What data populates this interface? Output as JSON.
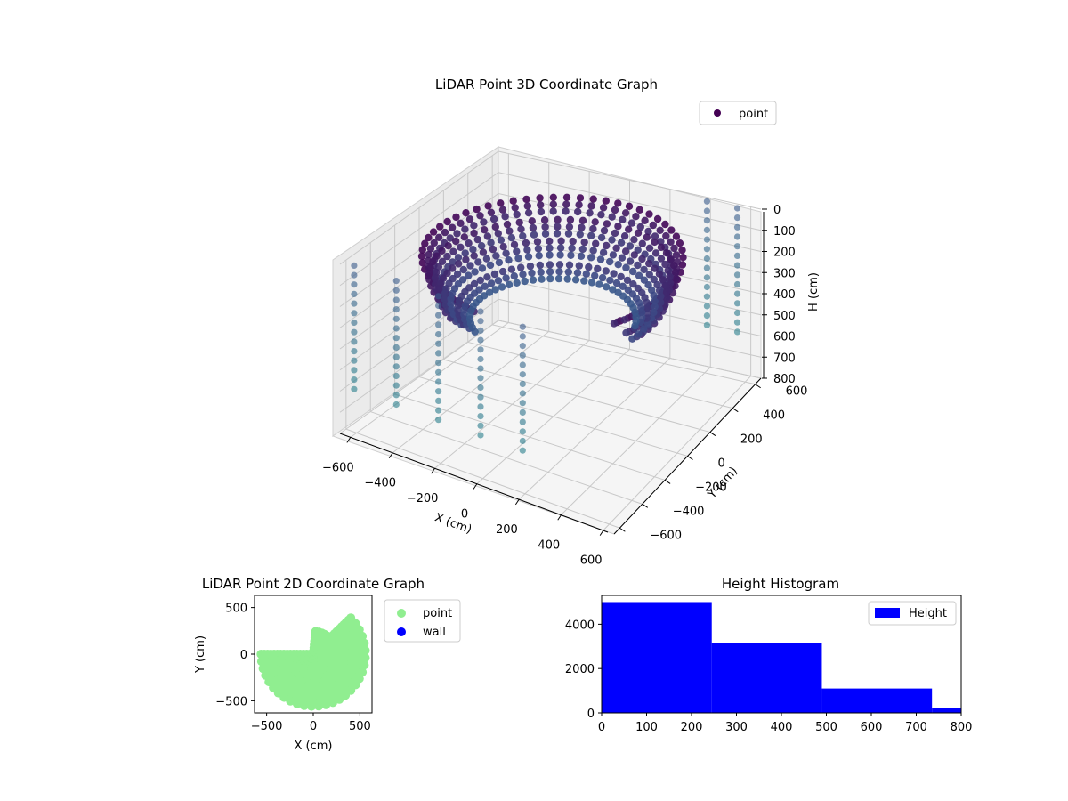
{
  "figure": {
    "charts": "see chart_data"
  },
  "chart_data": [
    {
      "type": "scatter",
      "projection": "3d",
      "title": "LiDAR Point 3D Coordinate Graph",
      "xlabel": "X (cm)",
      "ylabel": "Y (cm)",
      "zlabel": "H (cm)",
      "x_ticks": [
        "−600",
        "−400",
        "−200",
        "0",
        "200",
        "400",
        "600"
      ],
      "y_ticks": [
        "−600",
        "−400",
        "−200",
        "0",
        "200",
        "400",
        "600"
      ],
      "z_ticks": [
        "0",
        "100",
        "200",
        "300",
        "400",
        "500",
        "600",
        "700",
        "800"
      ],
      "xlim": [
        -650,
        650
      ],
      "ylim": [
        -650,
        650
      ],
      "zlim": [
        800,
        0
      ],
      "z_axis_inverted": true,
      "colormap": "viridis (color by height)",
      "legend": {
        "position": "top-right",
        "entries": [
          {
            "label": "point",
            "color": "#440154"
          }
        ]
      },
      "grid": true,
      "description_of_points": "Several curved rings of points at radius ~350-600 cm near the floor plus vertical columns of points along the walls",
      "series": [
        {
          "name": "point",
          "rings": [
            {
              "radius": 550,
              "height": 60,
              "angle_start": -30,
              "angle_end": 260
            },
            {
              "radius": 520,
              "height": 150,
              "angle_start": -20,
              "angle_end": 250
            },
            {
              "radius": 480,
              "height": 230,
              "angle_start": -10,
              "angle_end": 240
            },
            {
              "radius": 400,
              "height": 300,
              "angle_start": 20,
              "angle_end": 230
            }
          ],
          "wall_columns": [
            {
              "x": -600,
              "y": -620,
              "h_min": 0,
              "h_max": 600
            },
            {
              "x": -400,
              "y": -620,
              "h_min": 0,
              "h_max": 600
            },
            {
              "x": -200,
              "y": -620,
              "h_min": 0,
              "h_max": 600
            },
            {
              "x": 0,
              "y": -620,
              "h_min": 0,
              "h_max": 600
            },
            {
              "x": 200,
              "y": -620,
              "h_min": 0,
              "h_max": 600
            },
            {
              "x": 400,
              "y": 620,
              "h_min": 0,
              "h_max": 600
            },
            {
              "x": 550,
              "y": 620,
              "h_min": 0,
              "h_max": 600
            }
          ]
        }
      ]
    },
    {
      "type": "scatter",
      "title": "LiDAR Point 2D Coordinate Graph",
      "xlabel": "X (cm)",
      "ylabel": "Y (cm)",
      "x_ticks": [
        "−500",
        "0",
        "500"
      ],
      "y_ticks": [
        "500",
        "0",
        "−500"
      ],
      "xlim": [
        -630,
        630
      ],
      "ylim": [
        -630,
        630
      ],
      "legend": {
        "position": "outside-right",
        "entries": [
          {
            "label": "point",
            "color": "#90EE90"
          },
          {
            "label": "wall",
            "color": "#0000FF"
          }
        ]
      },
      "series": [
        {
          "name": "point",
          "color": "#90EE90",
          "shape": "dense semicircular fill, radius ~550 cm, left and bottom, with gap top-left"
        },
        {
          "name": "wall",
          "color": "#0000FF",
          "points": []
        }
      ]
    },
    {
      "type": "bar",
      "subtype": "histogram",
      "title": "Height Histogram",
      "xlabel": "",
      "ylabel": "",
      "bins": [
        [
          0,
          245
        ],
        [
          245,
          490
        ],
        [
          490,
          735
        ],
        [
          735,
          980
        ]
      ],
      "values": [
        5000,
        3150,
        1100,
        220
      ],
      "x_ticks": [
        "0",
        "100",
        "200",
        "300",
        "400",
        "500",
        "600",
        "700",
        "800"
      ],
      "y_ticks": [
        "0",
        "2000",
        "4000"
      ],
      "xlim": [
        0,
        800
      ],
      "ylim": [
        0,
        5300
      ],
      "color": "#0000FF",
      "legend": {
        "position": "top-right",
        "entries": [
          {
            "label": "Height",
            "color": "#0000FF"
          }
        ]
      }
    }
  ]
}
